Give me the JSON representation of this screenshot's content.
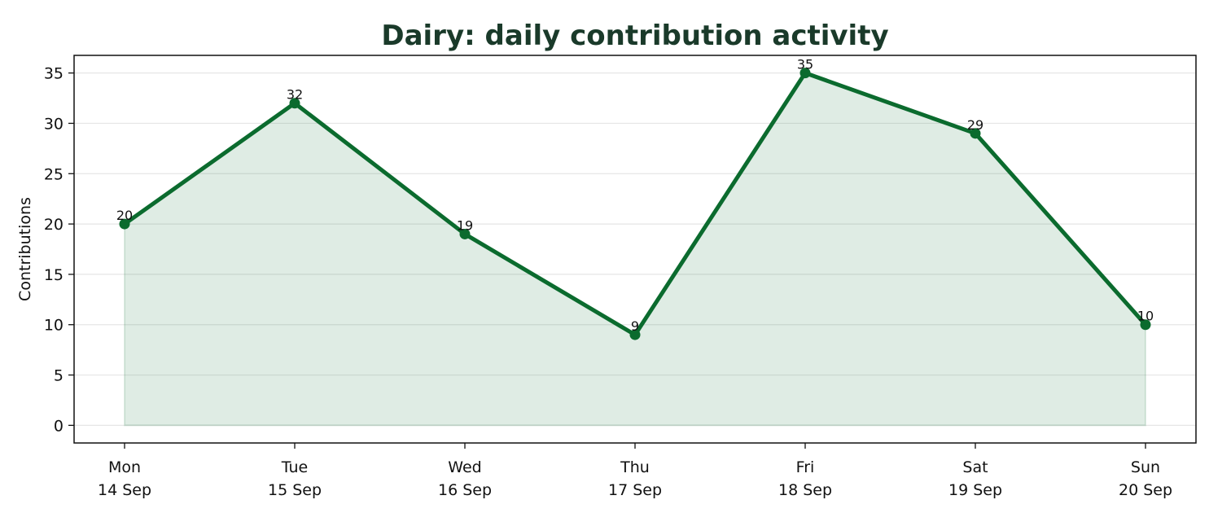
{
  "chart_data": {
    "type": "area",
    "title": "Dairy: daily contribution activity",
    "xlabel": "",
    "ylabel": "Contributions",
    "categories": [
      {
        "day": "Mon",
        "date": "14 Sep"
      },
      {
        "day": "Tue",
        "date": "15 Sep"
      },
      {
        "day": "Wed",
        "date": "16 Sep"
      },
      {
        "day": "Thu",
        "date": "17 Sep"
      },
      {
        "day": "Fri",
        "date": "18 Sep"
      },
      {
        "day": "Sat",
        "date": "19 Sep"
      },
      {
        "day": "Sun",
        "date": "20 Sep"
      }
    ],
    "values": [
      20,
      32,
      19,
      9,
      35,
      29,
      10
    ],
    "ylim": [
      -1.75,
      36.75
    ],
    "yticks": [
      0,
      5,
      10,
      15,
      20,
      25,
      30,
      35
    ],
    "grid": true,
    "legend": "none",
    "colors": {
      "line": "#0b6b2e",
      "fill": "#0b6b2e",
      "title": "#1a3a2a",
      "grid": "#e6e6e6"
    }
  }
}
